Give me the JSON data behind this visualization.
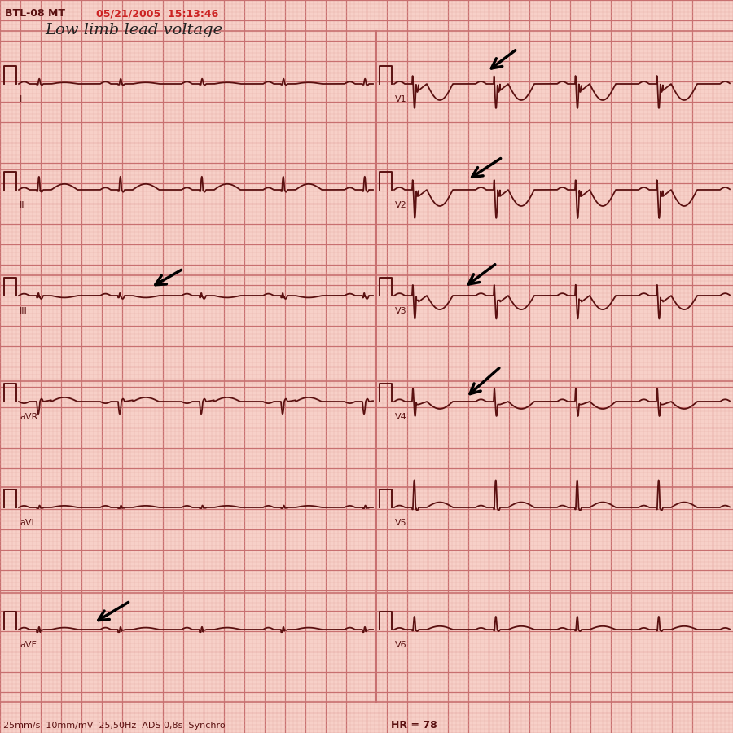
{
  "bg_color": "#f7d0c8",
  "grid_minor_color": "#e8b0a8",
  "grid_major_color": "#c87070",
  "ecg_color": "#5a1010",
  "title_text": "Low limb lead voltage",
  "header_left": "BTL-08 MT",
  "header_date": "05/21/2005  15:13:46",
  "footer_left": "25mm/s  10mm/mV  25,50Hz  ADS 0,8s  Synchro",
  "footer_right": "HR = 78",
  "lead_labels_left": [
    "I",
    "II",
    "III",
    "aVR",
    "aVL",
    "aVF"
  ],
  "lead_labels_right": [
    "V1",
    "V2",
    "V3",
    "V4",
    "V5",
    "V6"
  ],
  "arrow_color": "#000000",
  "title_color": "#222222",
  "header_color": "#5a1010",
  "date_color": "#cc2222"
}
